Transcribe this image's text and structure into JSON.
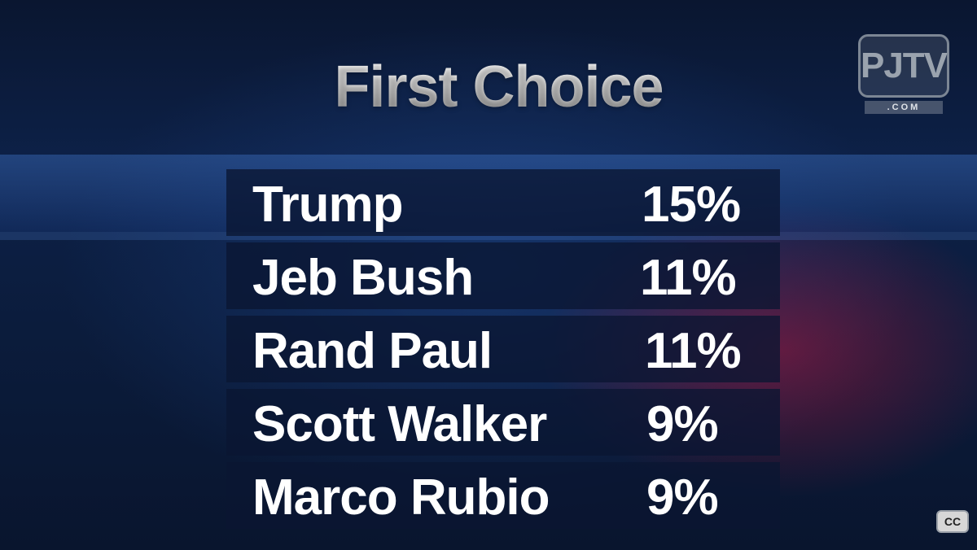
{
  "title": "First Choice",
  "logo": {
    "text": "PJTV",
    "sub": ".COM"
  },
  "results": [
    {
      "name": "Trump",
      "percent": "15%"
    },
    {
      "name": "Jeb Bush",
      "percent": "11%"
    },
    {
      "name": "Rand Paul",
      "percent": "11%"
    },
    {
      "name": "Scott Walker",
      "percent": "9%"
    },
    {
      "name": "Marco Rubio",
      "percent": "9%"
    }
  ],
  "controls": {
    "cc_label": "CC"
  }
}
